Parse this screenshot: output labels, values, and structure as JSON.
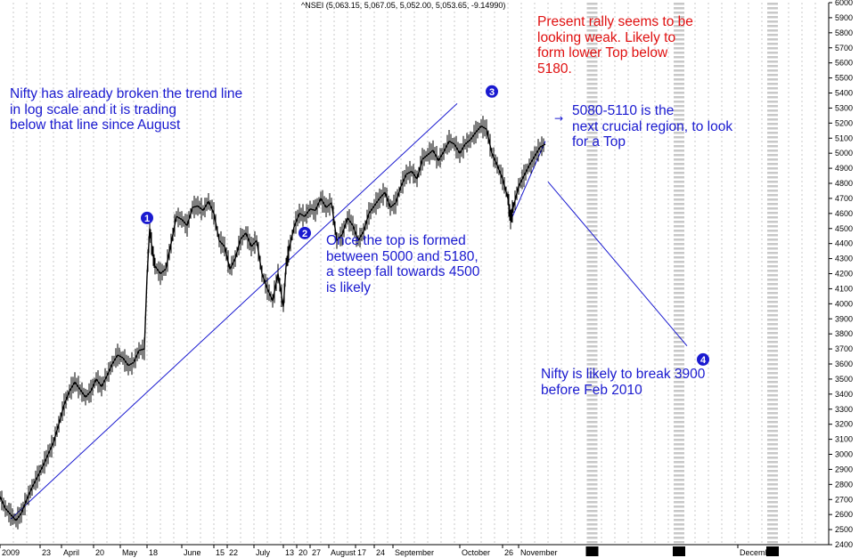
{
  "chart_data": {
    "type": "line",
    "title": "^NSEI (5,063.15, 5,067.05, 5,052.00, 5,053.65, -9.14990)",
    "ylim": [
      2400,
      6000
    ],
    "y_ticks": [
      2400,
      2500,
      2600,
      2700,
      2800,
      2900,
      3000,
      3100,
      3200,
      3300,
      3400,
      3500,
      3600,
      3700,
      3800,
      3900,
      4000,
      4100,
      4200,
      4300,
      4400,
      4500,
      4600,
      4700,
      4800,
      4900,
      5000,
      5100,
      5200,
      5300,
      5400,
      5500,
      5600,
      5700,
      5800,
      5900,
      6000
    ],
    "x_tick_labels": [
      {
        "label": "2009",
        "x": 0
      },
      {
        "label": "23",
        "x": 15
      },
      {
        "label": "April",
        "x": 23
      },
      {
        "label": "20",
        "x": 35
      },
      {
        "label": "May",
        "x": 45
      },
      {
        "label": "18",
        "x": 55
      },
      {
        "label": "June",
        "x": 68
      },
      {
        "label": "15",
        "x": 80
      },
      {
        "label": "22",
        "x": 85
      },
      {
        "label": "July",
        "x": 95
      },
      {
        "label": "13",
        "x": 106
      },
      {
        "label": "20",
        "x": 111
      },
      {
        "label": "27",
        "x": 116
      },
      {
        "label": "August",
        "x": 123
      },
      {
        "label": "17",
        "x": 133
      },
      {
        "label": "24",
        "x": 140
      },
      {
        "label": "September",
        "x": 147
      },
      {
        "label": "October",
        "x": 172
      },
      {
        "label": "26",
        "x": 188
      },
      {
        "label": "November",
        "x": 194
      },
      {
        "label": "December",
        "x": 276
      }
    ],
    "series": [
      {
        "values": [
          [
            0,
            2720
          ],
          [
            2,
            2640
          ],
          [
            4,
            2600
          ],
          [
            6,
            2560
          ],
          [
            8,
            2610
          ],
          [
            10,
            2700
          ],
          [
            12,
            2780
          ],
          [
            14,
            2850
          ],
          [
            16,
            2920
          ],
          [
            18,
            3000
          ],
          [
            20,
            3080
          ],
          [
            22,
            3200
          ],
          [
            24,
            3330
          ],
          [
            26,
            3420
          ],
          [
            28,
            3480
          ],
          [
            30,
            3430
          ],
          [
            32,
            3380
          ],
          [
            34,
            3420
          ],
          [
            36,
            3500
          ],
          [
            38,
            3450
          ],
          [
            40,
            3520
          ],
          [
            42,
            3600
          ],
          [
            44,
            3660
          ],
          [
            46,
            3640
          ],
          [
            48,
            3590
          ],
          [
            50,
            3610
          ],
          [
            52,
            3690
          ],
          [
            54,
            3700
          ],
          [
            55,
            4180
          ],
          [
            56,
            4500
          ],
          [
            57,
            4350
          ],
          [
            58,
            4250
          ],
          [
            60,
            4200
          ],
          [
            62,
            4230
          ],
          [
            64,
            4400
          ],
          [
            66,
            4580
          ],
          [
            68,
            4560
          ],
          [
            70,
            4520
          ],
          [
            72,
            4640
          ],
          [
            74,
            4650
          ],
          [
            76,
            4620
          ],
          [
            78,
            4680
          ],
          [
            80,
            4600
          ],
          [
            82,
            4420
          ],
          [
            84,
            4380
          ],
          [
            86,
            4230
          ],
          [
            88,
            4300
          ],
          [
            90,
            4430
          ],
          [
            92,
            4470
          ],
          [
            94,
            4380
          ],
          [
            96,
            4420
          ],
          [
            98,
            4200
          ],
          [
            100,
            4100
          ],
          [
            102,
            4020
          ],
          [
            104,
            4200
          ],
          [
            106,
            3980
          ],
          [
            107,
            4250
          ],
          [
            108,
            4350
          ],
          [
            110,
            4510
          ],
          [
            112,
            4600
          ],
          [
            114,
            4580
          ],
          [
            116,
            4630
          ],
          [
            118,
            4620
          ],
          [
            120,
            4700
          ],
          [
            122,
            4640
          ],
          [
            124,
            4670
          ],
          [
            126,
            4420
          ],
          [
            128,
            4460
          ],
          [
            130,
            4570
          ],
          [
            132,
            4520
          ],
          [
            134,
            4420
          ],
          [
            136,
            4480
          ],
          [
            138,
            4600
          ],
          [
            140,
            4650
          ],
          [
            142,
            4700
          ],
          [
            144,
            4740
          ],
          [
            146,
            4640
          ],
          [
            148,
            4670
          ],
          [
            150,
            4780
          ],
          [
            152,
            4860
          ],
          [
            154,
            4880
          ],
          [
            156,
            4830
          ],
          [
            158,
            4960
          ],
          [
            160,
            4990
          ],
          [
            162,
            5020
          ],
          [
            164,
            4950
          ],
          [
            166,
            5010
          ],
          [
            168,
            5080
          ],
          [
            170,
            5060
          ],
          [
            172,
            5000
          ],
          [
            174,
            5060
          ],
          [
            176,
            5090
          ],
          [
            178,
            5140
          ],
          [
            180,
            5180
          ],
          [
            182,
            5160
          ],
          [
            184,
            5000
          ],
          [
            186,
            4920
          ],
          [
            188,
            4830
          ],
          [
            190,
            4700
          ],
          [
            191,
            4560
          ],
          [
            192,
            4640
          ],
          [
            194,
            4780
          ],
          [
            196,
            4850
          ],
          [
            198,
            4920
          ],
          [
            200,
            4980
          ],
          [
            202,
            5040
          ],
          [
            204,
            5060
          ]
        ]
      }
    ],
    "trendlines": [
      {
        "from": [
          4,
          2570
        ],
        "to": [
          171,
          5330
        ]
      },
      {
        "from": [
          191,
          4550
        ],
        "to": [
          204,
          5080
        ]
      },
      {
        "from": [
          205,
          4810
        ],
        "to": [
          257,
          3720
        ]
      }
    ],
    "markers": [
      {
        "label": "1",
        "x": 55,
        "y": 4570
      },
      {
        "label": "2",
        "x": 114,
        "y": 4470
      },
      {
        "label": "3",
        "x": 184,
        "y": 5410
      },
      {
        "label": "4",
        "x": 263,
        "y": 3630
      }
    ],
    "annotations": [
      {
        "text": "Nifty has already broken the trend line\nin log scale and it is trading\nbelow that line since August",
        "color": "#1a1ad0"
      },
      {
        "text": "Present rally seems to be\nlooking weak. Likely to\nform lower Top below\n5180.",
        "color": "#e01010"
      },
      {
        "text": "5080-5110 is the\nnext crucial region, to look\nfor a Top",
        "color": "#1a1ad0"
      },
      {
        "text": "Once the top is formed\nbetween 5000 and 5180,\na steep fall towards 4500\nis likely",
        "color": "#1a1ad0"
      },
      {
        "text": "Nifty is likely to break 3900\nbefore Feb 2010",
        "color": "#1a1ad0"
      }
    ],
    "arrow_label": "→",
    "colors": {
      "price": "#000000",
      "trendline": "#1a1ad0",
      "grid": "#bbbbbb",
      "marker": "#1a1ad0"
    }
  }
}
